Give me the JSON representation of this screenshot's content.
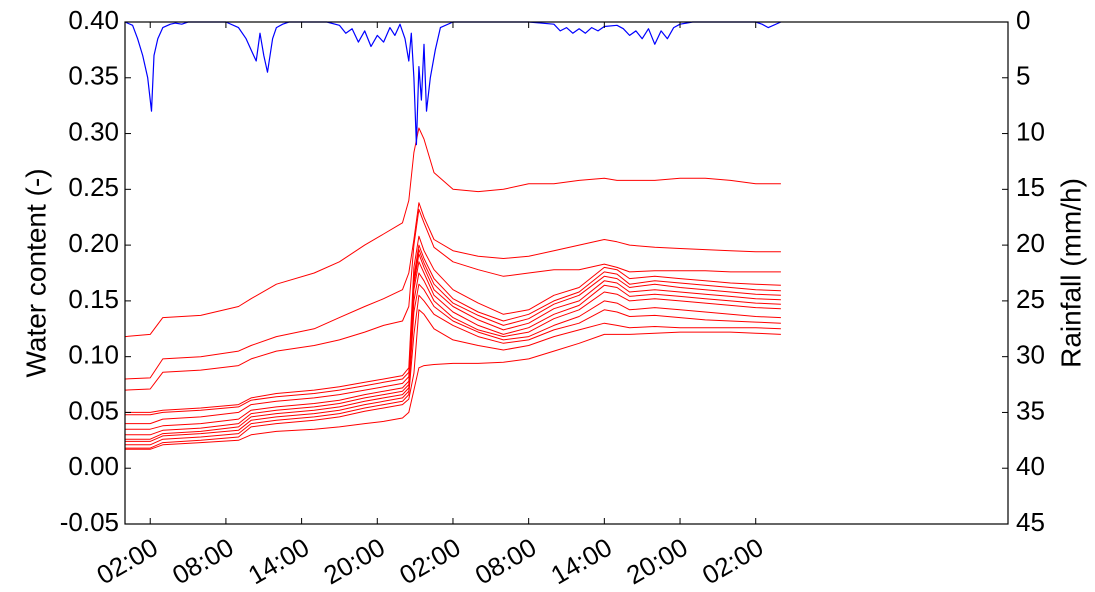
{
  "chart_data": {
    "type": "line",
    "title": "",
    "xlabel": "",
    "ylabel": "Water content (-)",
    "y2label": "Rainfall (mm/h)",
    "xlim": [
      0,
      70
    ],
    "ylim": [
      -0.05,
      0.4
    ],
    "y2lim": [
      0,
      45
    ],
    "y2_inverted": true,
    "grid": false,
    "legend": "none",
    "x_tick_values": [
      2,
      8,
      14,
      20,
      26,
      32,
      38,
      44,
      50
    ],
    "x_tick_labels": [
      "02:00",
      "08:00",
      "14:00",
      "20:00",
      "02:00",
      "08:00",
      "14:00",
      "20:00",
      "02:00"
    ],
    "y_tick_values": [
      -0.05,
      0.0,
      0.05,
      0.1,
      0.15,
      0.2,
      0.25,
      0.3,
      0.35,
      0.4
    ],
    "y_tick_labels": [
      "-0.05",
      "0.00",
      "0.05",
      "0.10",
      "0.15",
      "0.20",
      "0.25",
      "0.30",
      "0.35",
      "0.40"
    ],
    "y2_tick_values": [
      0,
      5,
      10,
      15,
      20,
      25,
      30,
      35,
      40,
      45
    ],
    "y2_tick_labels": [
      "0",
      "5",
      "10",
      "15",
      "20",
      "25",
      "30",
      "35",
      "40",
      "45"
    ],
    "x": [
      0,
      2,
      3,
      6,
      9,
      10,
      12,
      15,
      17,
      19,
      20.5,
      22.0,
      22.5,
      22.9,
      23.3,
      23.7,
      24.5,
      26,
      28,
      30,
      32,
      34,
      36,
      38,
      39,
      40,
      42,
      44,
      46,
      48,
      50,
      52
    ],
    "soil_color": "#ff0000",
    "rain_color": "#0000ff",
    "soil_series": [
      {
        "values": [
          0.118,
          0.12,
          0.135,
          0.137,
          0.145,
          0.152,
          0.165,
          0.175,
          0.185,
          0.2,
          0.21,
          0.22,
          0.24,
          0.283,
          0.305,
          0.295,
          0.265,
          0.25,
          0.248,
          0.25,
          0.255,
          0.255,
          0.258,
          0.26,
          0.258,
          0.258,
          0.258,
          0.26,
          0.26,
          0.258,
          0.255,
          0.255
        ]
      },
      {
        "values": [
          0.08,
          0.081,
          0.098,
          0.1,
          0.105,
          0.11,
          0.118,
          0.125,
          0.135,
          0.145,
          0.152,
          0.16,
          0.175,
          0.205,
          0.238,
          0.225,
          0.205,
          0.195,
          0.19,
          0.188,
          0.19,
          0.195,
          0.2,
          0.205,
          0.203,
          0.2,
          0.198,
          0.197,
          0.196,
          0.195,
          0.194,
          0.194
        ]
      },
      {
        "values": [
          0.07,
          0.071,
          0.086,
          0.088,
          0.092,
          0.098,
          0.105,
          0.11,
          0.115,
          0.122,
          0.128,
          0.132,
          0.145,
          0.2,
          0.232,
          0.22,
          0.198,
          0.185,
          0.178,
          0.172,
          0.175,
          0.178,
          0.178,
          0.183,
          0.18,
          0.176,
          0.177,
          0.177,
          0.177,
          0.176,
          0.176,
          0.176
        ]
      },
      {
        "values": [
          0.05,
          0.05,
          0.052,
          0.054,
          0.057,
          0.063,
          0.067,
          0.07,
          0.073,
          0.077,
          0.08,
          0.083,
          0.09,
          0.18,
          0.208,
          0.195,
          0.178,
          0.16,
          0.148,
          0.138,
          0.142,
          0.155,
          0.162,
          0.18,
          0.178,
          0.17,
          0.172,
          0.17,
          0.168,
          0.166,
          0.165,
          0.164
        ]
      },
      {
        "values": [
          0.048,
          0.048,
          0.05,
          0.052,
          0.055,
          0.061,
          0.064,
          0.067,
          0.07,
          0.074,
          0.077,
          0.08,
          0.086,
          0.172,
          0.2,
          0.188,
          0.17,
          0.152,
          0.14,
          0.132,
          0.138,
          0.15,
          0.158,
          0.176,
          0.174,
          0.165,
          0.168,
          0.166,
          0.164,
          0.162,
          0.16,
          0.159
        ]
      },
      {
        "values": [
          0.04,
          0.04,
          0.044,
          0.046,
          0.05,
          0.057,
          0.06,
          0.063,
          0.066,
          0.07,
          0.073,
          0.076,
          0.082,
          0.168,
          0.196,
          0.184,
          0.165,
          0.148,
          0.137,
          0.128,
          0.134,
          0.147,
          0.155,
          0.172,
          0.17,
          0.162,
          0.165,
          0.162,
          0.16,
          0.158,
          0.156,
          0.155
        ]
      },
      {
        "values": [
          0.035,
          0.035,
          0.038,
          0.04,
          0.044,
          0.052,
          0.055,
          0.058,
          0.061,
          0.066,
          0.069,
          0.072,
          0.078,
          0.165,
          0.192,
          0.18,
          0.16,
          0.145,
          0.133,
          0.124,
          0.13,
          0.143,
          0.15,
          0.168,
          0.166,
          0.158,
          0.16,
          0.158,
          0.156,
          0.154,
          0.152,
          0.151
        ]
      },
      {
        "values": [
          0.03,
          0.03,
          0.034,
          0.036,
          0.04,
          0.049,
          0.052,
          0.055,
          0.058,
          0.063,
          0.066,
          0.069,
          0.075,
          0.16,
          0.185,
          0.175,
          0.155,
          0.14,
          0.128,
          0.12,
          0.126,
          0.138,
          0.146,
          0.164,
          0.162,
          0.154,
          0.156,
          0.154,
          0.152,
          0.15,
          0.148,
          0.147
        ]
      },
      {
        "values": [
          0.026,
          0.026,
          0.031,
          0.033,
          0.037,
          0.046,
          0.049,
          0.052,
          0.055,
          0.06,
          0.063,
          0.066,
          0.072,
          0.15,
          0.175,
          0.168,
          0.15,
          0.135,
          0.124,
          0.118,
          0.122,
          0.134,
          0.142,
          0.158,
          0.156,
          0.15,
          0.152,
          0.15,
          0.148,
          0.146,
          0.144,
          0.143
        ]
      },
      {
        "values": [
          0.024,
          0.024,
          0.029,
          0.031,
          0.034,
          0.043,
          0.046,
          0.049,
          0.052,
          0.057,
          0.06,
          0.063,
          0.069,
          0.14,
          0.165,
          0.16,
          0.145,
          0.132,
          0.122,
          0.115,
          0.118,
          0.128,
          0.136,
          0.15,
          0.148,
          0.142,
          0.144,
          0.142,
          0.14,
          0.138,
          0.136,
          0.135
        ]
      },
      {
        "values": [
          0.021,
          0.021,
          0.026,
          0.028,
          0.031,
          0.04,
          0.043,
          0.046,
          0.049,
          0.054,
          0.057,
          0.06,
          0.066,
          0.12,
          0.155,
          0.15,
          0.138,
          0.128,
          0.118,
          0.112,
          0.115,
          0.124,
          0.13,
          0.142,
          0.14,
          0.136,
          0.137,
          0.135,
          0.133,
          0.132,
          0.131,
          0.13
        ]
      },
      {
        "values": [
          0.018,
          0.018,
          0.023,
          0.025,
          0.028,
          0.037,
          0.04,
          0.043,
          0.046,
          0.051,
          0.054,
          0.057,
          0.062,
          0.085,
          0.142,
          0.138,
          0.125,
          0.115,
          0.11,
          0.106,
          0.11,
          0.118,
          0.124,
          0.13,
          0.128,
          0.126,
          0.127,
          0.126,
          0.126,
          0.126,
          0.126,
          0.125
        ]
      },
      {
        "values": [
          0.017,
          0.017,
          0.021,
          0.023,
          0.025,
          0.03,
          0.033,
          0.035,
          0.037,
          0.04,
          0.042,
          0.045,
          0.05,
          0.07,
          0.09,
          0.092,
          0.093,
          0.094,
          0.094,
          0.095,
          0.098,
          0.105,
          0.112,
          0.12,
          0.12,
          0.12,
          0.121,
          0.122,
          0.122,
          0.122,
          0.121,
          0.12
        ]
      }
    ],
    "rain_series": {
      "x": [
        0,
        0.6,
        1.0,
        1.4,
        1.8,
        2.1,
        2.3,
        2.6,
        3.0,
        3.6,
        4.0,
        4.5,
        5.0,
        8.0,
        9.0,
        9.6,
        10.0,
        10.4,
        10.7,
        11.0,
        11.3,
        11.7,
        12.0,
        12.5,
        13.0,
        16.0,
        17.0,
        17.5,
        18.0,
        18.5,
        19.0,
        19.5,
        20.0,
        20.5,
        21.0,
        21.4,
        21.8,
        22.2,
        22.5,
        22.7,
        22.9,
        23.1,
        23.3,
        23.5,
        23.7,
        23.9,
        24.2,
        24.6,
        25.0,
        26.0,
        28.0,
        32.0,
        34.0,
        34.5,
        35.0,
        35.5,
        36.0,
        36.5,
        37.0,
        37.5,
        38.0,
        39.0,
        39.5,
        40.0,
        40.5,
        41.0,
        41.5,
        42.0,
        42.5,
        43.0,
        43.5,
        44.0,
        44.5,
        45.0,
        47.0,
        50.0,
        50.5,
        51.0,
        52.0
      ],
      "values": [
        0,
        0.3,
        1.5,
        3.0,
        5.0,
        8.0,
        3.0,
        1.5,
        0.5,
        0.2,
        0.1,
        0.2,
        0,
        0,
        0.5,
        1.5,
        2.5,
        3.5,
        1.0,
        3.0,
        4.5,
        1.5,
        0.5,
        0.2,
        0,
        0,
        0.3,
        1.0,
        0.6,
        1.8,
        0.8,
        2.2,
        1.2,
        1.8,
        0.5,
        1.2,
        0.2,
        1.5,
        3.5,
        1.0,
        5.0,
        11.0,
        4.0,
        7.0,
        2.0,
        8.0,
        5.0,
        2.5,
        0.5,
        0,
        0,
        0,
        0.2,
        0.8,
        0.5,
        1.0,
        0.6,
        1.0,
        0.5,
        0.8,
        0.4,
        0.3,
        0.6,
        1.2,
        0.8,
        1.5,
        0.6,
        2.0,
        0.8,
        1.5,
        0.5,
        0.2,
        0.1,
        0,
        0,
        0,
        0.2,
        0.5,
        0
      ]
    }
  }
}
